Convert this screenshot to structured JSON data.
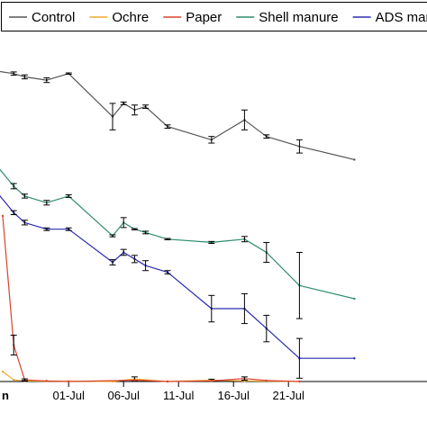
{
  "chart_data": {
    "type": "line",
    "title": "",
    "xlabel": "",
    "ylabel": "",
    "x_ticks": [
      "01-Jul",
      "06-Jul",
      "11-Jul",
      "16-Jul",
      "21-Jul"
    ],
    "x_tick_positions": [
      "2019-07-01",
      "2019-07-06",
      "2019-07-11",
      "2019-07-16",
      "2019-07-21"
    ],
    "x_partial_left_label": "n",
    "xlim": [
      "2019-06-25",
      "2019-07-25"
    ],
    "ylim": [
      0,
      100
    ],
    "grid": false,
    "legend_position": "top",
    "series": [
      {
        "name": "Control",
        "color": "#555555",
        "points": [
          {
            "x": "2019-06-24",
            "y": 94,
            "err": 0
          },
          {
            "x": "2019-06-26",
            "y": 93,
            "err": 0.5
          },
          {
            "x": "2019-06-27",
            "y": 92,
            "err": 0.6
          },
          {
            "x": "2019-06-29",
            "y": 91,
            "err": 0.7
          },
          {
            "x": "2019-07-01",
            "y": 93,
            "err": 0.2
          },
          {
            "x": "2019-07-05",
            "y": 80,
            "err": 4
          },
          {
            "x": "2019-07-06",
            "y": 84,
            "err": 0.4
          },
          {
            "x": "2019-07-07",
            "y": 82,
            "err": 1.5
          },
          {
            "x": "2019-07-08",
            "y": 83,
            "err": 0.5
          },
          {
            "x": "2019-07-10",
            "y": 77,
            "err": 0.5
          },
          {
            "x": "2019-07-14",
            "y": 73,
            "err": 1
          },
          {
            "x": "2019-07-17",
            "y": 79,
            "err": 3
          },
          {
            "x": "2019-07-19",
            "y": 74,
            "err": 0.5
          },
          {
            "x": "2019-07-22",
            "y": 71,
            "err": 2
          },
          {
            "x": "2019-07-27",
            "y": 67,
            "err": 0
          }
        ]
      },
      {
        "name": "Ochre",
        "color": "#f0a830",
        "points": [
          {
            "x": "2019-06-25",
            "y": 3,
            "err": 0
          },
          {
            "x": "2019-06-26",
            "y": 0.5,
            "err": 0
          },
          {
            "x": "2019-06-27",
            "y": 0.2,
            "err": 0.1
          },
          {
            "x": "2019-06-29",
            "y": 0.1,
            "err": 0
          },
          {
            "x": "2019-07-01",
            "y": 0.1,
            "err": 0
          },
          {
            "x": "2019-07-05",
            "y": 0,
            "err": 0
          },
          {
            "x": "2019-07-07",
            "y": 0.8,
            "err": 0.6
          },
          {
            "x": "2019-07-10",
            "y": 0,
            "err": 0
          },
          {
            "x": "2019-07-14",
            "y": 0.4,
            "err": 0.3
          },
          {
            "x": "2019-07-17",
            "y": 0.2,
            "err": 0
          },
          {
            "x": "2019-07-22",
            "y": 0,
            "err": 0
          }
        ]
      },
      {
        "name": "Paper",
        "color": "#d8432c",
        "points": [
          {
            "x": "2019-06-25",
            "y": 50,
            "err": 0
          },
          {
            "x": "2019-06-26",
            "y": 11,
            "err": 3
          },
          {
            "x": "2019-06-27",
            "y": 0.5,
            "err": 0.3
          },
          {
            "x": "2019-06-29",
            "y": 0.2,
            "err": 0
          },
          {
            "x": "2019-07-01",
            "y": 0,
            "err": 0
          },
          {
            "x": "2019-07-07",
            "y": 0.4,
            "err": 0
          },
          {
            "x": "2019-07-10",
            "y": 0,
            "err": 0
          },
          {
            "x": "2019-07-14",
            "y": 0.2,
            "err": 0
          },
          {
            "x": "2019-07-17",
            "y": 0.9,
            "err": 0.5
          },
          {
            "x": "2019-07-19",
            "y": 0.3,
            "err": 0
          },
          {
            "x": "2019-07-22",
            "y": 0,
            "err": 0
          }
        ]
      },
      {
        "name": "Shell manure",
        "color": "#2e8b6e",
        "points": [
          {
            "x": "2019-06-24",
            "y": 67,
            "err": 0
          },
          {
            "x": "2019-06-26",
            "y": 59,
            "err": 0.8
          },
          {
            "x": "2019-06-27",
            "y": 56,
            "err": 0.6
          },
          {
            "x": "2019-06-29",
            "y": 54,
            "err": 0.7
          },
          {
            "x": "2019-07-01",
            "y": 56,
            "err": 0.4
          },
          {
            "x": "2019-07-05",
            "y": 44,
            "err": 0.3
          },
          {
            "x": "2019-07-06",
            "y": 48,
            "err": 1.5
          },
          {
            "x": "2019-07-07",
            "y": 46,
            "err": 0.2
          },
          {
            "x": "2019-07-08",
            "y": 45,
            "err": 0.4
          },
          {
            "x": "2019-07-10",
            "y": 43,
            "err": 0.2
          },
          {
            "x": "2019-07-14",
            "y": 42,
            "err": 0.3
          },
          {
            "x": "2019-07-17",
            "y": 43,
            "err": 0.8
          },
          {
            "x": "2019-07-19",
            "y": 39,
            "err": 3
          },
          {
            "x": "2019-07-22",
            "y": 29,
            "err": 10
          },
          {
            "x": "2019-07-27",
            "y": 25,
            "err": 0
          }
        ]
      },
      {
        "name": "ADS manure",
        "color": "#2b2bb0",
        "points": [
          {
            "x": "2019-06-24",
            "y": 59,
            "err": 0
          },
          {
            "x": "2019-06-26",
            "y": 51,
            "err": 0.6
          },
          {
            "x": "2019-06-27",
            "y": 48,
            "err": 0.7
          },
          {
            "x": "2019-06-29",
            "y": 46,
            "err": 0.4
          },
          {
            "x": "2019-07-01",
            "y": 46,
            "err": 0.4
          },
          {
            "x": "2019-07-05",
            "y": 36,
            "err": 0.8
          },
          {
            "x": "2019-07-06",
            "y": 39,
            "err": 0.9
          },
          {
            "x": "2019-07-07",
            "y": 37,
            "err": 1.1
          },
          {
            "x": "2019-07-08",
            "y": 35,
            "err": 1.5
          },
          {
            "x": "2019-07-10",
            "y": 33,
            "err": 0.5
          },
          {
            "x": "2019-07-14",
            "y": 22,
            "err": 4
          },
          {
            "x": "2019-07-17",
            "y": 22,
            "err": 4.5
          },
          {
            "x": "2019-07-19",
            "y": 16,
            "err": 4
          },
          {
            "x": "2019-07-22",
            "y": 7,
            "err": 6
          },
          {
            "x": "2019-07-27",
            "y": 7,
            "err": 0
          }
        ]
      }
    ]
  }
}
